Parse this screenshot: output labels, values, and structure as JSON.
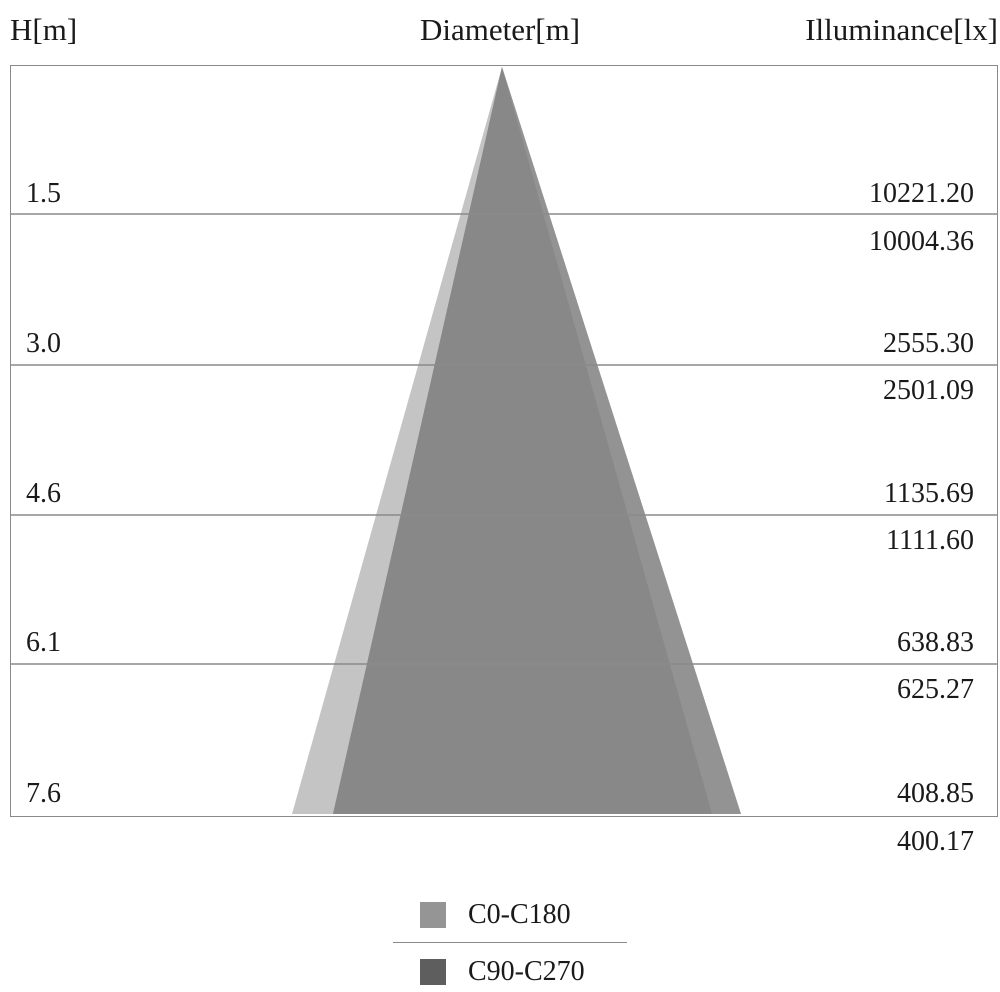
{
  "headers": {
    "height": "H[m]",
    "diameter": "Diameter[m]",
    "illuminance": "Illuminance[lx]"
  },
  "rows": [
    {
      "height": "1.5",
      "illuminance_c0": "10221.20",
      "illuminance_c90": "10004.36"
    },
    {
      "height": "3.0",
      "illuminance_c0": "2555.30",
      "illuminance_c90": "2501.09"
    },
    {
      "height": "4.6",
      "illuminance_c0": "1135.69",
      "illuminance_c90": "1111.60"
    },
    {
      "height": "6.1",
      "illuminance_c0": "638.83",
      "illuminance_c90": "625.27"
    },
    {
      "height": "7.6",
      "illuminance_c0": "408.85",
      "illuminance_c90": "400.17"
    }
  ],
  "legend": [
    {
      "label": "C0-C180",
      "color": "#959595"
    },
    {
      "label": "C90-C270",
      "color": "#5e5e5e"
    }
  ],
  "colors": {
    "cone_c0": "#c4c4c4",
    "cone_c90": "#939393",
    "overlap": "#888888",
    "lines": "#8a8a8a"
  }
}
